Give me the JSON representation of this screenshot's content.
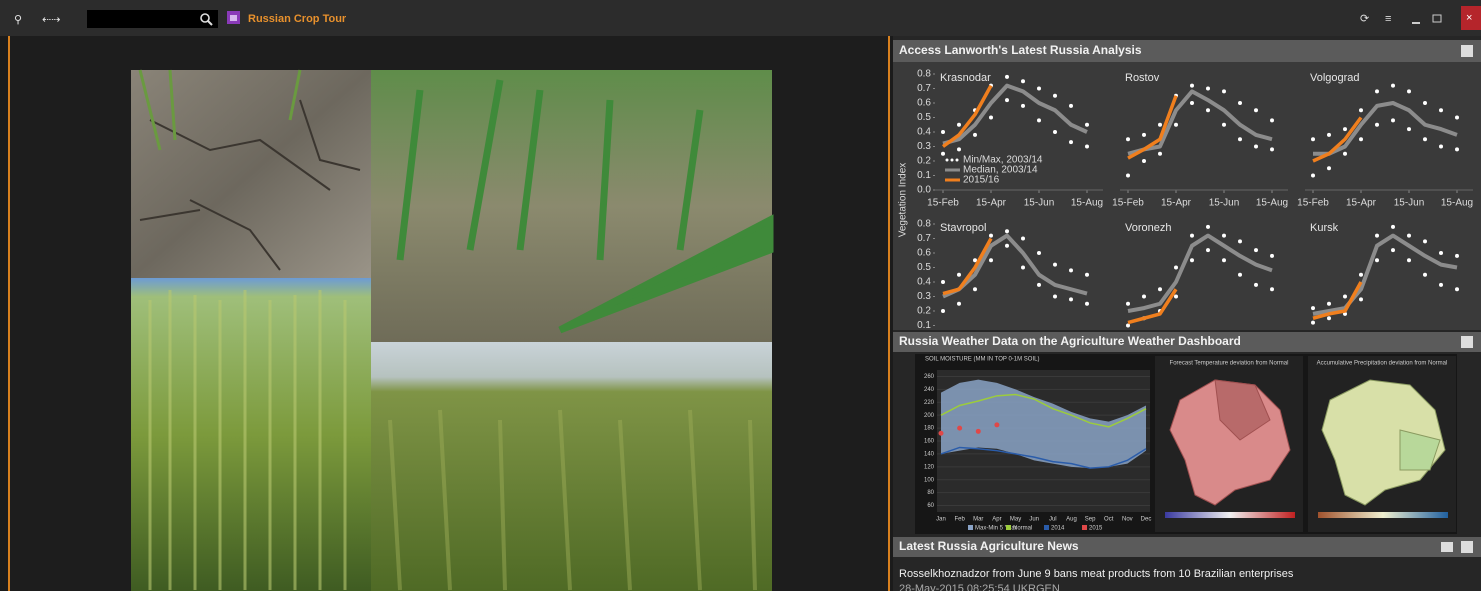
{
  "window": {
    "title": "Russian Crop Tour"
  },
  "panels": [
    {
      "title": "Access Lanworth's Latest Russia Analysis"
    },
    {
      "title": "Russia Weather Data on the Agriculture Weather Dashboard"
    },
    {
      "title": "Latest Russia Agriculture News"
    }
  ],
  "lanworth": {
    "ylabel": "Vegetation Index",
    "legend": [
      "Min/Max, 2003/14",
      "Median, 2003/14",
      "2015/16"
    ],
    "xlim": [
      -0.5,
      10
    ],
    "ylim": [
      0,
      0.8
    ],
    "xticks": [
      {
        "value": 0,
        "label": "15-Feb"
      },
      {
        "value": 3,
        "label": "15-Apr"
      },
      {
        "value": 6,
        "label": "15-Jun"
      },
      {
        "value": 9,
        "label": "15-Aug"
      }
    ],
    "yticks": [
      {
        "value": 0,
        "label": "0.0"
      },
      0.1,
      0.2,
      0.3,
      0.4,
      0.5,
      0.6,
      0.7,
      0.8
    ]
  },
  "chart_data": [
    {
      "type": "line",
      "title": "Krasnodar",
      "x": [
        0,
        1,
        2,
        3,
        4,
        5,
        6,
        7,
        8,
        9
      ],
      "series": [
        {
          "style": "dots",
          "color": "#ffffff",
          "values": [
            0.4,
            0.45,
            0.55,
            0.72,
            0.78,
            0.75,
            0.7,
            0.65,
            0.58,
            0.45
          ]
        },
        {
          "style": "dots",
          "color": "#ffffff",
          "values": [
            0.25,
            0.28,
            0.38,
            0.5,
            0.62,
            0.58,
            0.48,
            0.4,
            0.33,
            0.3
          ]
        },
        {
          "style": "line",
          "color": "#8c8c8c",
          "values": [
            0.32,
            0.35,
            0.45,
            0.6,
            0.72,
            0.68,
            0.6,
            0.55,
            0.45,
            0.4
          ]
        },
        {
          "style": "line",
          "color": "#f07f1e",
          "values": [
            0.3,
            0.38,
            0.52,
            0.72,
            null,
            null,
            null,
            null,
            null,
            null
          ]
        }
      ]
    },
    {
      "type": "line",
      "title": "Rostov",
      "x": [
        0,
        1,
        2,
        3,
        4,
        5,
        6,
        7,
        8,
        9
      ],
      "series": [
        {
          "style": "dots",
          "color": "#ffffff",
          "values": [
            0.35,
            0.38,
            0.45,
            0.65,
            0.72,
            0.7,
            0.68,
            0.6,
            0.55,
            0.48
          ]
        },
        {
          "style": "dots",
          "color": "#ffffff",
          "values": [
            0.1,
            0.2,
            0.25,
            0.45,
            0.6,
            0.55,
            0.45,
            0.35,
            0.3,
            0.28
          ]
        },
        {
          "style": "line",
          "color": "#8c8c8c",
          "values": [
            0.25,
            0.28,
            0.3,
            0.55,
            0.68,
            0.62,
            0.55,
            0.45,
            0.38,
            0.35
          ]
        },
        {
          "style": "line",
          "color": "#f07f1e",
          "values": [
            0.22,
            0.28,
            0.35,
            0.65,
            null,
            null,
            null,
            null,
            null,
            null
          ]
        }
      ]
    },
    {
      "type": "line",
      "title": "Volgograd",
      "x": [
        0,
        1,
        2,
        3,
        4,
        5,
        6,
        7,
        8,
        9
      ],
      "series": [
        {
          "style": "dots",
          "color": "#ffffff",
          "values": [
            0.35,
            0.38,
            0.42,
            0.55,
            0.68,
            0.72,
            0.68,
            0.6,
            0.55,
            0.5
          ]
        },
        {
          "style": "dots",
          "color": "#ffffff",
          "values": [
            0.1,
            0.15,
            0.25,
            0.35,
            0.45,
            0.48,
            0.42,
            0.35,
            0.3,
            0.28
          ]
        },
        {
          "style": "line",
          "color": "#8c8c8c",
          "values": [
            0.25,
            0.25,
            0.3,
            0.45,
            0.58,
            0.6,
            0.55,
            0.45,
            0.42,
            0.38
          ]
        },
        {
          "style": "line",
          "color": "#f07f1e",
          "values": [
            0.2,
            0.25,
            0.35,
            0.5,
            null,
            null,
            null,
            null,
            null,
            null
          ]
        }
      ]
    },
    {
      "type": "line",
      "title": "Stavropol",
      "x": [
        0,
        1,
        2,
        3,
        4,
        5,
        6,
        7,
        8,
        9
      ],
      "series": [
        {
          "style": "dots",
          "color": "#ffffff",
          "values": [
            0.4,
            0.45,
            0.55,
            0.72,
            0.75,
            0.7,
            0.6,
            0.52,
            0.48,
            0.45
          ]
        },
        {
          "style": "dots",
          "color": "#ffffff",
          "values": [
            0.2,
            0.25,
            0.35,
            0.55,
            0.65,
            0.5,
            0.38,
            0.3,
            0.28,
            0.25
          ]
        },
        {
          "style": "line",
          "color": "#8c8c8c",
          "values": [
            0.3,
            0.35,
            0.45,
            0.65,
            0.72,
            0.6,
            0.45,
            0.38,
            0.35,
            0.32
          ]
        },
        {
          "style": "line",
          "color": "#f07f1e",
          "values": [
            0.32,
            0.35,
            0.5,
            0.7,
            null,
            null,
            null,
            null,
            null,
            null
          ]
        }
      ]
    },
    {
      "type": "line",
      "title": "Voronezh",
      "x": [
        0,
        1,
        2,
        3,
        4,
        5,
        6,
        7,
        8,
        9
      ],
      "series": [
        {
          "style": "dots",
          "color": "#ffffff",
          "values": [
            0.25,
            0.3,
            0.35,
            0.5,
            0.72,
            0.78,
            0.72,
            0.68,
            0.62,
            0.58
          ]
        },
        {
          "style": "dots",
          "color": "#ffffff",
          "values": [
            0.1,
            0.15,
            0.2,
            0.3,
            0.55,
            0.62,
            0.55,
            0.45,
            0.38,
            0.35
          ]
        },
        {
          "style": "line",
          "color": "#8c8c8c",
          "values": [
            0.2,
            0.22,
            0.25,
            0.4,
            0.65,
            0.72,
            0.65,
            0.58,
            0.52,
            0.48
          ]
        },
        {
          "style": "line",
          "color": "#f07f1e",
          "values": [
            0.12,
            0.15,
            0.18,
            0.35,
            null,
            null,
            null,
            null,
            null,
            null
          ]
        }
      ]
    },
    {
      "type": "line",
      "title": "Kursk",
      "x": [
        0,
        1,
        2,
        3,
        4,
        5,
        6,
        7,
        8,
        9
      ],
      "series": [
        {
          "style": "dots",
          "color": "#ffffff",
          "values": [
            0.22,
            0.25,
            0.3,
            0.45,
            0.72,
            0.78,
            0.72,
            0.68,
            0.6,
            0.58
          ]
        },
        {
          "style": "dots",
          "color": "#ffffff",
          "values": [
            0.12,
            0.15,
            0.18,
            0.28,
            0.55,
            0.62,
            0.55,
            0.45,
            0.38,
            0.35
          ]
        },
        {
          "style": "line",
          "color": "#8c8c8c",
          "values": [
            0.18,
            0.2,
            0.22,
            0.35,
            0.65,
            0.72,
            0.65,
            0.58,
            0.52,
            0.5
          ]
        },
        {
          "style": "line",
          "color": "#f07f1e",
          "values": [
            0.15,
            0.18,
            0.2,
            0.4,
            null,
            null,
            null,
            null,
            null,
            null
          ]
        }
      ]
    }
  ],
  "weather": {
    "soil": {
      "title": "SOIL MOISTURE (MM IN TOP 0-1M SOIL)",
      "months": [
        "Jan",
        "Feb",
        "Mar",
        "Apr",
        "May",
        "Jun",
        "Jul",
        "Aug",
        "Sep",
        "Oct",
        "Nov",
        "Dec"
      ],
      "ylim": [
        50,
        270
      ],
      "yticks": [
        60,
        80,
        100,
        120,
        140,
        160,
        180,
        200,
        220,
        240,
        260
      ],
      "legend": [
        "Max-Min 5 Year",
        "Normal",
        "2014",
        "2015"
      ],
      "max": [
        235,
        250,
        255,
        250,
        240,
        228,
        218,
        205,
        195,
        190,
        200,
        215
      ],
      "min": [
        140,
        145,
        150,
        148,
        140,
        130,
        125,
        120,
        118,
        120,
        125,
        145
      ],
      "normal": [
        200,
        215,
        222,
        230,
        232,
        225,
        210,
        200,
        188,
        182,
        195,
        210
      ],
      "y2014": [
        140,
        150,
        148,
        145,
        140,
        135,
        128,
        125,
        118,
        120,
        130,
        148
      ],
      "y2015": [
        172,
        180,
        175,
        185
      ]
    },
    "maps": [
      {
        "title": "Forecast Temperature deviation from Normal"
      },
      {
        "title": "Accumulative Precipitation deviation from Normal"
      }
    ]
  },
  "news": {
    "headline": "Rosselkhoznadzor from June 9 bans meat products from 10 Brazilian enterprises",
    "timestamp": "28-May-2015 08:25:54 UKRGEN"
  }
}
